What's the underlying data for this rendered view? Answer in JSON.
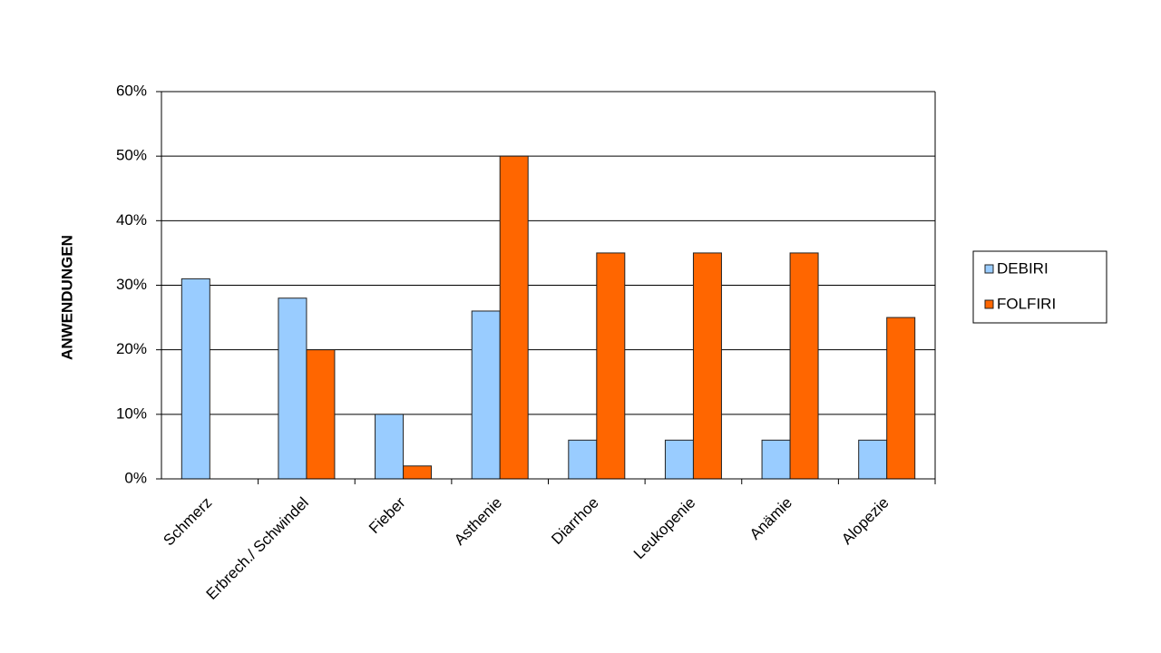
{
  "chart_data": {
    "type": "bar",
    "y_label": "ANWENDUNGEN",
    "categories": [
      "Schmerz",
      "Erbrech./ Schwindel",
      "Fieber",
      "Asthenie",
      "Diarrhoe",
      "Leukopenie",
      "Anämie",
      "Alopezie"
    ],
    "series": [
      {
        "name": "DEBIRI",
        "color": "#99ccff",
        "values": [
          31,
          28,
          10,
          26,
          6,
          6,
          6,
          6
        ]
      },
      {
        "name": "FOLFIRI",
        "color": "#ff6600",
        "values": [
          null,
          20,
          2,
          50,
          35,
          35,
          35,
          25
        ]
      }
    ],
    "ylim": [
      0,
      60
    ],
    "yticks": [
      {
        "value": 0,
        "label": "0%"
      },
      {
        "value": 10,
        "label": "10%"
      },
      {
        "value": 20,
        "label": "20%"
      },
      {
        "value": 30,
        "label": "30%"
      },
      {
        "value": 40,
        "label": "40%"
      },
      {
        "value": 50,
        "label": "50%"
      },
      {
        "value": 60,
        "label": "60%"
      }
    ],
    "grid": true,
    "legend": "right"
  }
}
